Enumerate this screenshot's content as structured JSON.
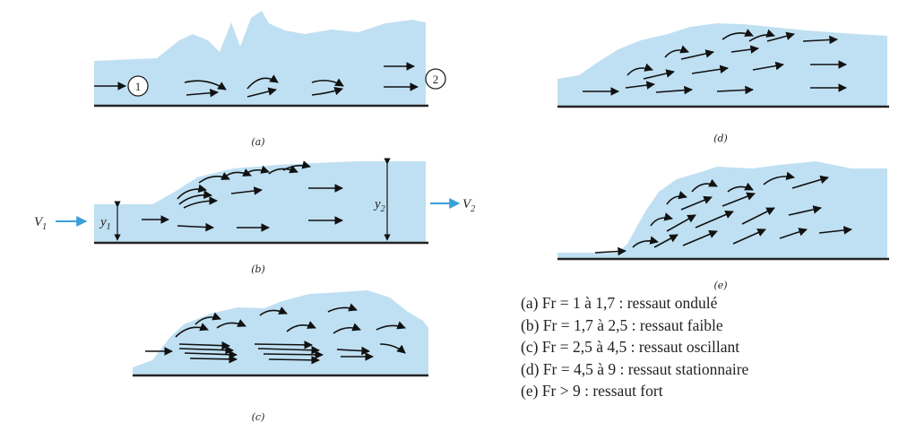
{
  "panels": [
    {
      "id": "a",
      "caption": "(a)"
    },
    {
      "id": "b",
      "caption": "(b)"
    },
    {
      "id": "c",
      "caption": "(c)"
    },
    {
      "id": "d",
      "caption": "(d)"
    },
    {
      "id": "e",
      "caption": "(e)"
    }
  ],
  "labels": {
    "section_1": "1",
    "section_2": "2",
    "v1": "V",
    "v1_sub": "1",
    "v2": "V",
    "v2_sub": "2",
    "y1": "y",
    "y1_sub": "1",
    "y2": "y",
    "y2_sub": "2"
  },
  "colors": {
    "water": "#bfe0f2",
    "velocity_arrow": "#3aa0d8",
    "bed": "#222222"
  },
  "legend": [
    "(a) Fr = 1 à 1,7 : ressaut ondulé",
    "(b) Fr = 1,7 à 2,5 : ressaut faible",
    "(c) Fr = 2,5 à 4,5 : ressaut oscillant",
    "(d) Fr = 4,5 à 9 : ressaut stationnaire",
    "(e) Fr > 9 : ressaut fort"
  ]
}
